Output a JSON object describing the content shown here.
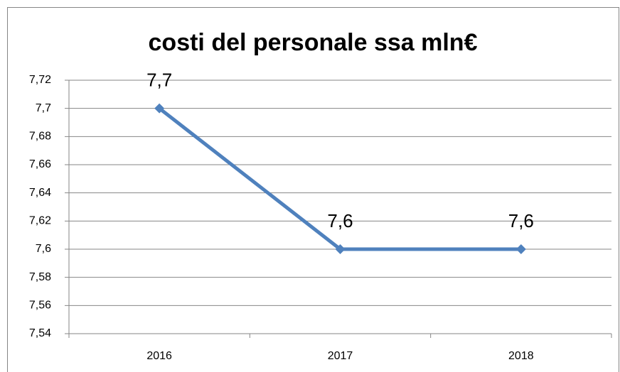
{
  "chart_data": {
    "type": "line",
    "title": "costi del personale ssa mln€",
    "categories": [
      "2016",
      "2017",
      "2018"
    ],
    "series": [
      {
        "name": "costi del personale ssa mln€",
        "color": "#4f81bd",
        "values": [
          7.7,
          7.6,
          7.6
        ],
        "value_labels": [
          "7,7",
          "7,6",
          "7,6"
        ]
      }
    ],
    "ylim": [
      7.54,
      7.72
    ],
    "yticks": [
      {
        "value": 7.54,
        "label": "7,54"
      },
      {
        "value": 7.56,
        "label": "7,56"
      },
      {
        "value": 7.58,
        "label": "7,58"
      },
      {
        "value": 7.6,
        "label": "7,6"
      },
      {
        "value": 7.62,
        "label": "7,62"
      },
      {
        "value": 7.64,
        "label": "7,64"
      },
      {
        "value": 7.66,
        "label": "7,66"
      },
      {
        "value": 7.68,
        "label": "7,68"
      },
      {
        "value": 7.7,
        "label": "7,7"
      },
      {
        "value": 7.72,
        "label": "7,72"
      }
    ],
    "grid": true
  }
}
